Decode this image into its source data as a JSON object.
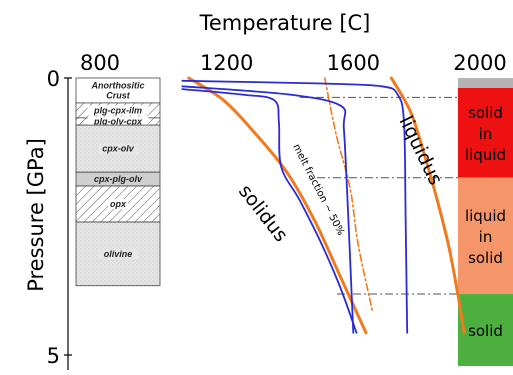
{
  "chart_data": {
    "type": "line",
    "title": "Temperature [C]",
    "xlabel": "Temperature [C]",
    "ylabel": "Pressure [GPa]",
    "xlim": [
      800,
      2000
    ],
    "ylim": [
      0,
      5
    ],
    "x_ticks": [
      800,
      1200,
      1600,
      2000
    ],
    "y_ticks": [
      0,
      5
    ],
    "x_tick_labels": [
      "800",
      "1200",
      "1600",
      "2000"
    ],
    "y_tick_labels": [
      "0",
      "5"
    ],
    "colors": {
      "solidus": "#f07b1f",
      "liquidus": "#f07b1f",
      "paths": "#2b2bd6",
      "melt_fraction": "#f07b1f",
      "dashdot": "#555555",
      "solid_in_liquid": "#ee1111",
      "liquid_in_solid": "#f5956a",
      "solid": "#4caf3e",
      "cap": "#b3b3b3"
    },
    "series": [
      {
        "name": "solidus",
        "points": [
          [
            1080,
            0.0
          ],
          [
            1190,
            0.4
          ],
          [
            1290,
            1.0
          ],
          [
            1390,
            1.7
          ],
          [
            1480,
            2.6
          ],
          [
            1560,
            3.6
          ],
          [
            1640,
            4.6
          ]
        ]
      },
      {
        "name": "liquidus",
        "points": [
          [
            1720,
            0.0
          ],
          [
            1780,
            0.6
          ],
          [
            1820,
            1.3
          ],
          [
            1860,
            2.1
          ],
          [
            1900,
            3.0
          ],
          [
            1930,
            3.9
          ],
          [
            1950,
            4.6
          ]
        ]
      },
      {
        "name": "melt fraction ~ 50%",
        "points": [
          [
            1510,
            0.0
          ],
          [
            1545,
            1.0
          ],
          [
            1590,
            2.0
          ],
          [
            1615,
            3.0
          ],
          [
            1660,
            4.2
          ]
        ]
      },
      {
        "name": "",
        "points": [
          [
            1060,
            0.2
          ],
          [
            1250,
            0.3
          ],
          [
            1350,
            0.4
          ],
          [
            1365,
            0.8
          ],
          [
            1372,
            1.6
          ],
          [
            1430,
            2.2
          ],
          [
            1500,
            3.0
          ],
          [
            1560,
            3.8
          ],
          [
            1610,
            4.6
          ]
        ]
      },
      {
        "name": "",
        "points": [
          [
            1060,
            0.15
          ],
          [
            1400,
            0.3
          ],
          [
            1560,
            0.5
          ],
          [
            1570,
            0.9
          ],
          [
            1580,
            2.0
          ],
          [
            1600,
            4.6
          ]
        ]
      },
      {
        "name": "",
        "points": [
          [
            1060,
            0.05
          ],
          [
            1500,
            0.1
          ],
          [
            1690,
            0.15
          ],
          [
            1740,
            0.3
          ],
          [
            1760,
            0.8
          ],
          [
            1765,
            2.5
          ],
          [
            1770,
            4.6
          ]
        ]
      }
    ],
    "dashdot_levels": [
      0.35,
      1.8,
      3.9
    ],
    "annotations": {
      "solidus": "solidus",
      "liquidus": "liquidus",
      "melt_fraction": "melt fraction ~ 50%"
    },
    "column_layers": [
      {
        "label_lines": [
          "Anorthositic",
          "Crust"
        ],
        "p_top": 0.0,
        "p_bottom": 0.45,
        "fill": "white"
      },
      {
        "label_lines": [
          "plg-cpx-ilm"
        ],
        "p_top": 0.45,
        "p_bottom": 0.72,
        "fill": "hatch"
      },
      {
        "label_lines": [
          "plg-olv-cpx"
        ],
        "p_top": 0.72,
        "p_bottom": 0.85,
        "fill": "hatch"
      },
      {
        "label_lines": [
          "cpx-olv"
        ],
        "p_top": 0.85,
        "p_bottom": 1.7,
        "fill": "stipple"
      },
      {
        "label_lines": [
          "cpx-plg-olv"
        ],
        "p_top": 1.7,
        "p_bottom": 1.95,
        "fill": "gray"
      },
      {
        "label_lines": [
          "opx"
        ],
        "p_top": 1.95,
        "p_bottom": 2.6,
        "fill": "hatch"
      },
      {
        "label_lines": [
          "olivine"
        ],
        "p_top": 2.6,
        "p_bottom": 3.75,
        "fill": "stipple"
      }
    ],
    "zones": [
      {
        "label_lines": [
          "solid",
          "in",
          "liquid"
        ],
        "p_top": 0.18,
        "p_bottom": 1.8,
        "color": "#ee1111"
      },
      {
        "label_lines": [
          "liquid",
          "in",
          "solid"
        ],
        "p_top": 1.8,
        "p_bottom": 3.9,
        "color": "#f5956a"
      },
      {
        "label_lines": [
          "solid"
        ],
        "p_top": 3.9,
        "p_bottom": 5.2,
        "color": "#4caf3e"
      }
    ]
  }
}
